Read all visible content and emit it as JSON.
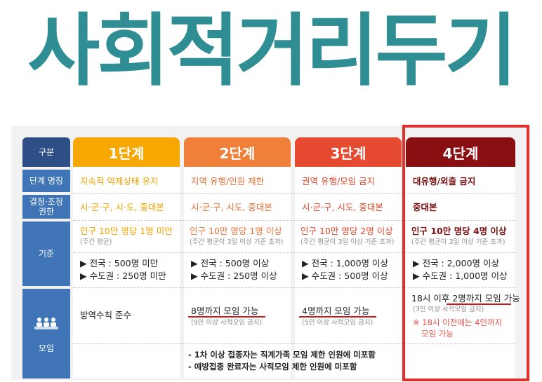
{
  "title": "사회적거리두기",
  "row_labels": {
    "category": "구분",
    "stage_name": "단계 명칭",
    "authority": "결정·조정\n권한",
    "criteria": "기준",
    "gathering": "모임"
  },
  "stages": [
    {
      "label": "1단계",
      "color": "#f6a700",
      "name": "지속적 억제상태 유지",
      "authority": "시·군·구, 시·도, 중대본",
      "criteria_main": "인구 10만 명당 1명 미만",
      "criteria_sub": "(주간 평균)",
      "bullets": [
        "▶ 전국 : 500명 미만",
        "▶ 수도권 : 250명 미만"
      ],
      "gathering_main": "방역수칙 준수",
      "gathering_sub": ""
    },
    {
      "label": "2단계",
      "color": "#f07f3a",
      "name": "지역 유행/인원 제한",
      "authority": "시·군·구, 시도, 중대본",
      "criteria_main": "인구 10만 명당 1명 이상",
      "criteria_sub": "(주간 평균이 3일 이상 기준 초과)",
      "bullets": [
        "▶ 전국 : 500명 이상",
        "▶ 수도권 : 250명 이상"
      ],
      "gathering_main": "8명까지 모임 가능",
      "gathering_sub": "(9인 이상 사적모임 금지)"
    },
    {
      "label": "3단계",
      "color": "#e64a30",
      "name": "권역 유행/모임 금지",
      "authority": "시·군·구, 시도, 중대본",
      "criteria_main": "인구 10만 명당 2명 이상",
      "criteria_sub": "(주간 평균이 3일 이상 기준 초과)",
      "bullets": [
        "▶ 전국 : 1,000명 이상",
        "▶ 수도권 : 500명 이상"
      ],
      "gathering_main": "4명까지 모임 가능",
      "gathering_sub": "(5인 이상 사적모임 금지)"
    },
    {
      "label": "4단계",
      "color": "#8a0f12",
      "name": "대유행/외출 금지",
      "authority": "중대본",
      "criteria_main": "인구 10만 명당 4명 이상",
      "criteria_sub": "(주간 평균이 3일 이상 기준 초과)",
      "bullets": [
        "▶ 전국 : 2,000명 이상",
        "▶ 수도권 : 1,000명 이상"
      ],
      "gathering_main_prefix": "18시 이후 ",
      "gathering_main": "2명까지 모임 가능",
      "gathering_sub": "(3인 이상 사적모임 금지)",
      "gathering_note": [
        "※ 18시 이전에는 4인까지",
        "모임 가능"
      ]
    }
  ],
  "footnotes": [
    "- 1차 이상 접종자는 직계가족 모임 제한 인원에 미포함",
    "- 예방접종 완료자는 사적모임 제한 인원에 미포함"
  ],
  "colors": {
    "title": "#2f8e94",
    "label_bg": "#3f74b6",
    "highlight_frame": "#e0312f"
  }
}
